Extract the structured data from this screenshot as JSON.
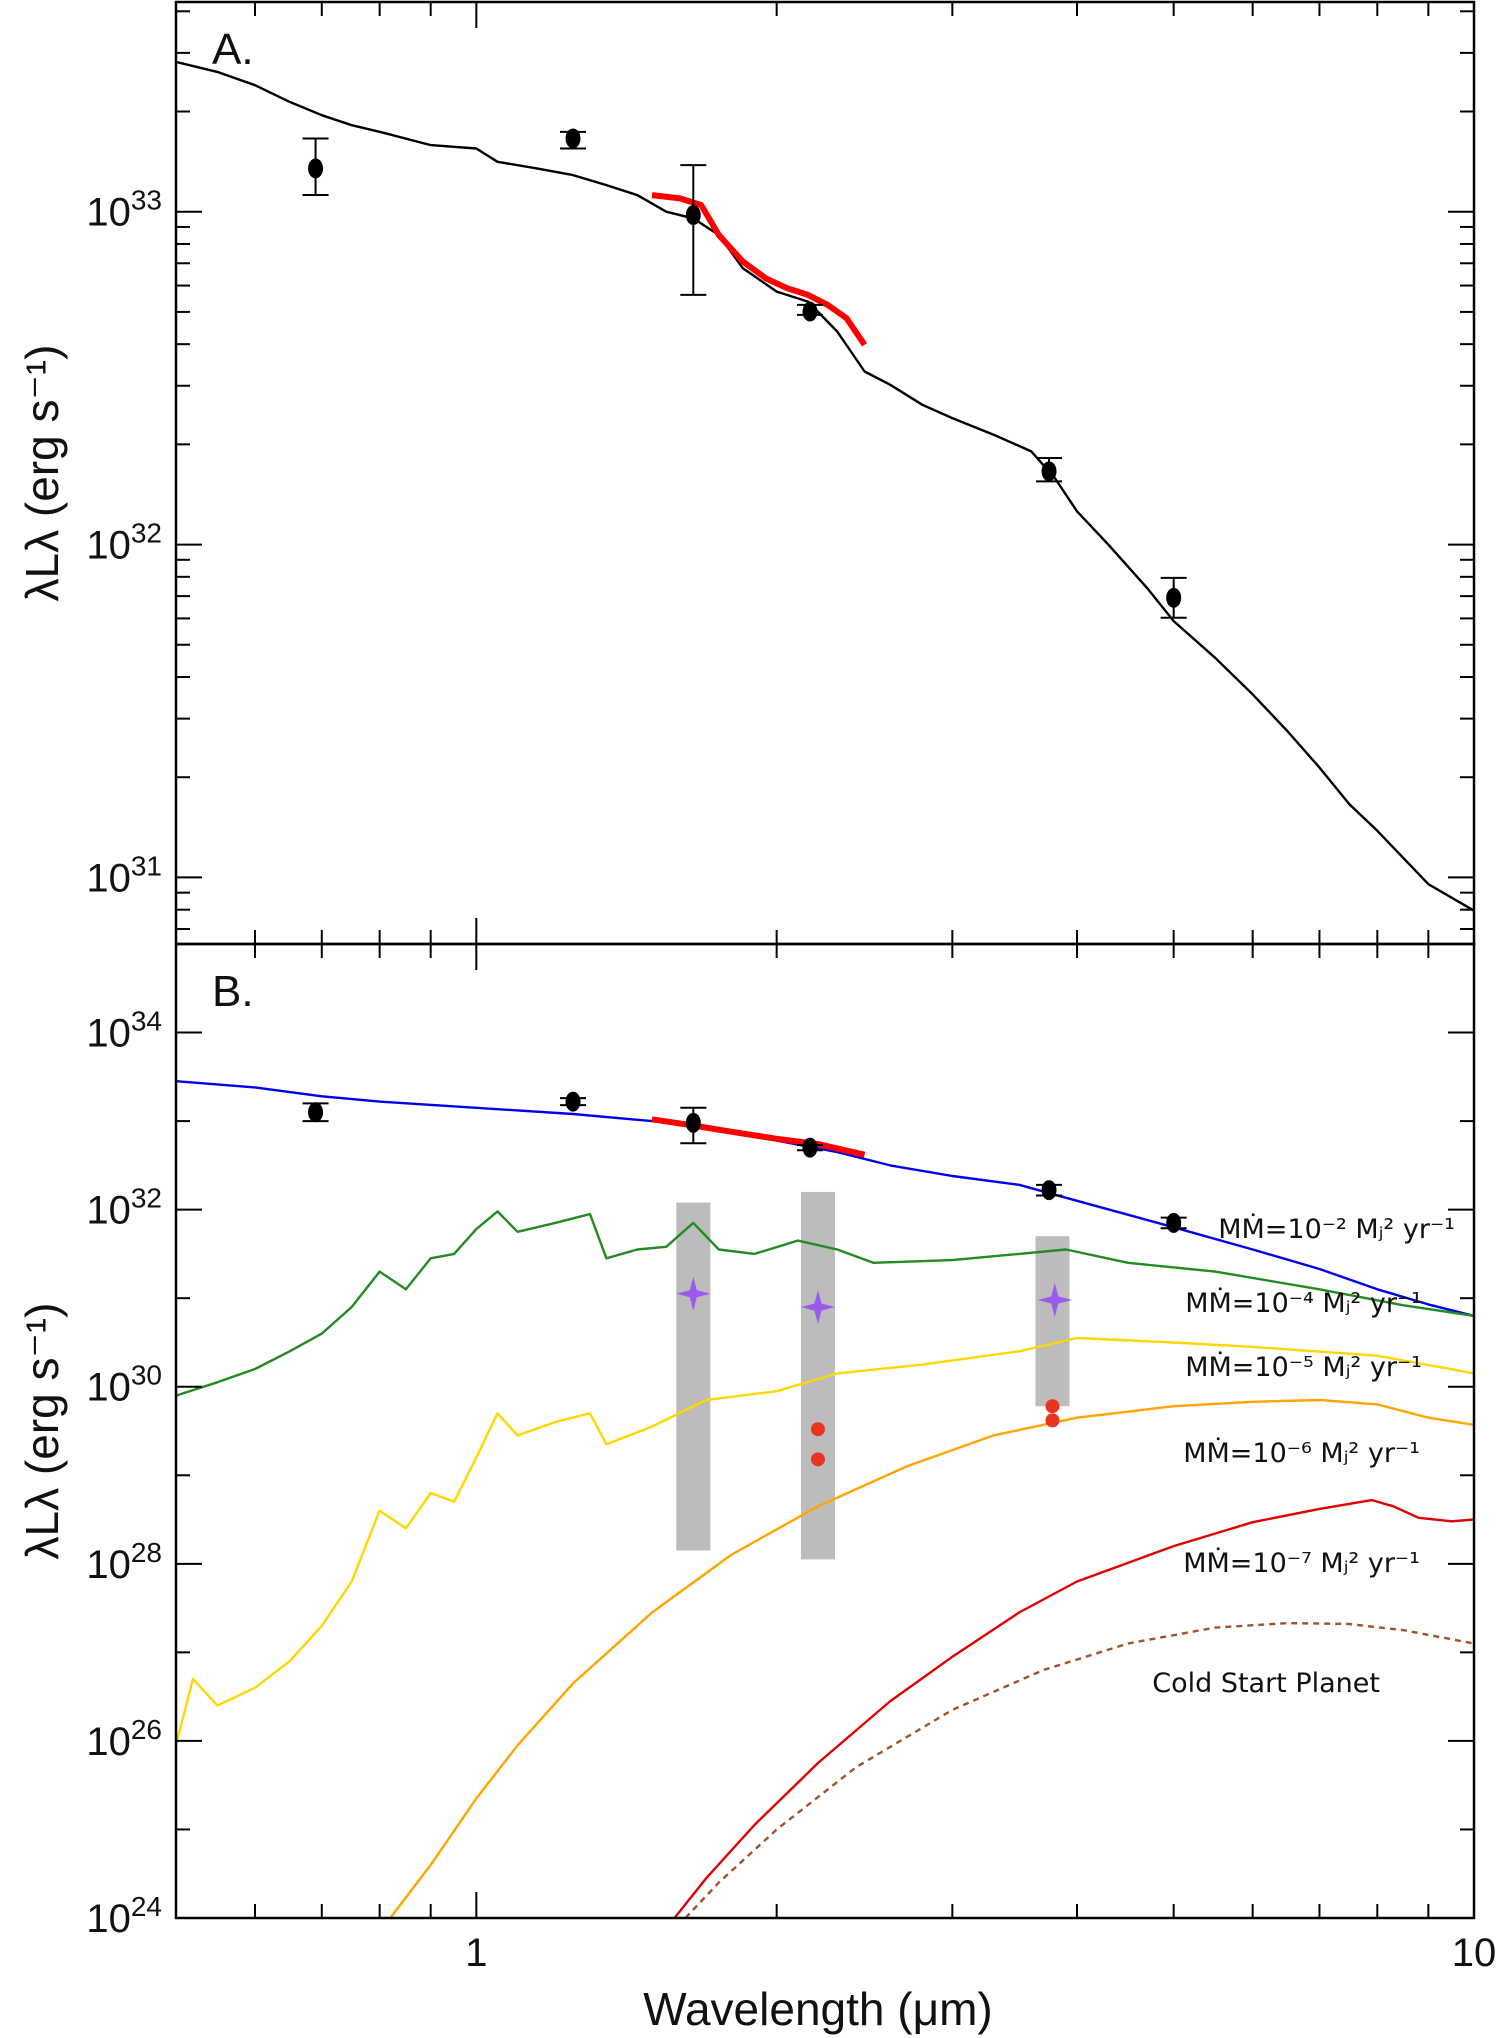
{
  "chart_data": [
    {
      "panel": "A.",
      "type": "line",
      "ylabel": "λLλ (erg s⁻¹)",
      "xscale": "log",
      "yscale": "log",
      "xlim": [
        0.5,
        10
      ],
      "ylim_log10": [
        30.8,
        33.63
      ],
      "y_ticks": [
        {
          "base": "10",
          "exp": "33",
          "v": 33
        },
        {
          "base": "10",
          "exp": "32",
          "v": 32
        },
        {
          "base": "10",
          "exp": "31",
          "v": 31
        }
      ],
      "series": [
        {
          "color": "#000000",
          "style": "model spectrum",
          "points": [
            [
              0.5,
              33.45
            ],
            [
              0.55,
              33.42
            ],
            [
              0.6,
              33.38
            ],
            [
              0.65,
              33.33
            ],
            [
              0.7,
              33.29
            ],
            [
              0.75,
              33.26
            ],
            [
              0.8,
              33.24
            ],
            [
              0.9,
              33.2
            ],
            [
              1.0,
              33.19
            ],
            [
              1.05,
              33.15
            ],
            [
              1.15,
              33.13
            ],
            [
              1.25,
              33.11
            ],
            [
              1.35,
              33.08
            ],
            [
              1.45,
              33.05
            ],
            [
              1.55,
              33.0
            ],
            [
              1.65,
              32.98
            ],
            [
              1.75,
              32.93
            ],
            [
              1.85,
              32.83
            ],
            [
              2.0,
              32.76
            ],
            [
              2.15,
              32.73
            ],
            [
              2.3,
              32.64
            ],
            [
              2.45,
              32.52
            ],
            [
              2.6,
              32.48
            ],
            [
              2.8,
              32.42
            ],
            [
              3.0,
              32.38
            ],
            [
              3.3,
              32.33
            ],
            [
              3.6,
              32.28
            ],
            [
              3.8,
              32.2
            ],
            [
              4.0,
              32.1
            ],
            [
              4.3,
              32.0
            ],
            [
              4.7,
              31.87
            ],
            [
              5.0,
              31.77
            ],
            [
              5.5,
              31.66
            ],
            [
              6.0,
              31.55
            ],
            [
              6.5,
              31.44
            ],
            [
              7.0,
              31.33
            ],
            [
              7.5,
              31.22
            ],
            [
              8.0,
              31.14
            ],
            [
              9.0,
              30.98
            ],
            [
              10.0,
              30.9
            ]
          ]
        },
        {
          "color": "#ff0000",
          "style": "observed spectrum",
          "points": [
            [
              1.5,
              33.05
            ],
            [
              1.6,
              33.04
            ],
            [
              1.68,
              33.02
            ],
            [
              1.75,
              32.93
            ],
            [
              1.85,
              32.85
            ],
            [
              1.95,
              32.8
            ],
            [
              2.05,
              32.77
            ],
            [
              2.15,
              32.75
            ],
            [
              2.25,
              32.72
            ],
            [
              2.35,
              32.68
            ],
            [
              2.45,
              32.6
            ]
          ]
        }
      ],
      "points": [
        {
          "x": 0.69,
          "y": 33.13,
          "yerr_lo": 33.05,
          "yerr_hi": 33.22
        },
        {
          "x": 1.25,
          "y": 33.22,
          "yerr_lo": 33.19,
          "yerr_hi": 33.24
        },
        {
          "x": 1.65,
          "y": 32.99,
          "yerr_lo": 32.75,
          "yerr_hi": 33.14
        },
        {
          "x": 2.16,
          "y": 32.7,
          "yerr_lo": 32.69,
          "yerr_hi": 32.72
        },
        {
          "x": 3.75,
          "y": 32.22,
          "yerr_lo": 32.19,
          "yerr_hi": 32.26
        },
        {
          "x": 5.0,
          "y": 31.84,
          "yerr_lo": 31.78,
          "yerr_hi": 31.9
        }
      ]
    },
    {
      "panel": "B.",
      "type": "line",
      "ylabel": "λLλ (erg s⁻¹)",
      "xlabel": "Wavelength (μm)",
      "xscale": "log",
      "yscale": "log",
      "xlim": [
        0.5,
        10
      ],
      "ylim_log10": [
        24,
        35.0
      ],
      "y_ticks": [
        {
          "base": "10",
          "exp": "34",
          "v": 34
        },
        {
          "base": "10",
          "exp": "32",
          "v": 32
        },
        {
          "base": "10",
          "exp": "30",
          "v": 30
        },
        {
          "base": "10",
          "exp": "28",
          "v": 28
        },
        {
          "base": "10",
          "exp": "26",
          "v": 26
        },
        {
          "base": "10",
          "exp": "24",
          "v": 24
        }
      ],
      "x_ticks": [
        {
          "label": "1",
          "v": 1
        },
        {
          "label": "10",
          "v": 10
        }
      ],
      "series": [
        {
          "color": "#0000ee",
          "label_text": "MṀ=10⁻² Mⱼ² yr⁻¹",
          "points": [
            [
              0.5,
              33.45
            ],
            [
              0.6,
              33.38
            ],
            [
              0.7,
              33.28
            ],
            [
              0.8,
              33.22
            ],
            [
              1.0,
              33.15
            ],
            [
              1.25,
              33.08
            ],
            [
              1.5,
              33.0
            ],
            [
              1.7,
              32.92
            ],
            [
              2.0,
              32.78
            ],
            [
              2.3,
              32.65
            ],
            [
              2.6,
              32.5
            ],
            [
              3.0,
              32.38
            ],
            [
              3.5,
              32.28
            ],
            [
              4.0,
              32.1
            ],
            [
              5.0,
              31.8
            ],
            [
              6.0,
              31.55
            ],
            [
              7.0,
              31.33
            ],
            [
              8.0,
              31.1
            ],
            [
              9.0,
              30.93
            ],
            [
              10.0,
              30.8
            ]
          ]
        },
        {
          "color": "#228b22",
          "label_text": "MṀ=10⁻⁴ Mⱼ² yr⁻¹",
          "points": [
            [
              0.5,
              29.9
            ],
            [
              0.55,
              30.05
            ],
            [
              0.6,
              30.2
            ],
            [
              0.65,
              30.4
            ],
            [
              0.7,
              30.6
            ],
            [
              0.75,
              30.9
            ],
            [
              0.8,
              31.3
            ],
            [
              0.85,
              31.1
            ],
            [
              0.9,
              31.45
            ],
            [
              0.95,
              31.5
            ],
            [
              1.0,
              31.78
            ],
            [
              1.05,
              31.98
            ],
            [
              1.1,
              31.75
            ],
            [
              1.2,
              31.85
            ],
            [
              1.3,
              31.95
            ],
            [
              1.35,
              31.45
            ],
            [
              1.45,
              31.55
            ],
            [
              1.55,
              31.58
            ],
            [
              1.65,
              31.85
            ],
            [
              1.75,
              31.55
            ],
            [
              1.9,
              31.5
            ],
            [
              2.1,
              31.65
            ],
            [
              2.3,
              31.55
            ],
            [
              2.5,
              31.4
            ],
            [
              3.0,
              31.43
            ],
            [
              3.5,
              31.5
            ],
            [
              3.9,
              31.55
            ],
            [
              4.5,
              31.4
            ],
            [
              5.5,
              31.3
            ],
            [
              7.0,
              31.1
            ],
            [
              8.5,
              30.92
            ],
            [
              10.0,
              30.8
            ]
          ]
        },
        {
          "color": "#ffd700",
          "label_text": "MṀ=10⁻⁵ Mⱼ² yr⁻¹",
          "points": [
            [
              0.5,
              25.95
            ],
            [
              0.52,
              26.7
            ],
            [
              0.55,
              26.4
            ],
            [
              0.6,
              26.6
            ],
            [
              0.65,
              26.9
            ],
            [
              0.7,
              27.3
            ],
            [
              0.75,
              27.8
            ],
            [
              0.8,
              28.6
            ],
            [
              0.85,
              28.4
            ],
            [
              0.9,
              28.8
            ],
            [
              0.95,
              28.7
            ],
            [
              1.0,
              29.2
            ],
            [
              1.05,
              29.7
            ],
            [
              1.1,
              29.45
            ],
            [
              1.2,
              29.6
            ],
            [
              1.3,
              29.7
            ],
            [
              1.35,
              29.35
            ],
            [
              1.5,
              29.55
            ],
            [
              1.7,
              29.85
            ],
            [
              2.0,
              29.95
            ],
            [
              2.3,
              30.15
            ],
            [
              2.8,
              30.25
            ],
            [
              3.5,
              30.4
            ],
            [
              4.0,
              30.55
            ],
            [
              5.0,
              30.5
            ],
            [
              6.0,
              30.45
            ],
            [
              8.0,
              30.35
            ],
            [
              10.0,
              30.15
            ]
          ]
        },
        {
          "color": "#ffa500",
          "label_text": "MṀ=10⁻⁶ Mⱼ² yr⁻¹",
          "points": [
            [
              0.82,
              24.0
            ],
            [
              0.9,
              24.6
            ],
            [
              1.0,
              25.35
            ],
            [
              1.1,
              25.95
            ],
            [
              1.25,
              26.65
            ],
            [
              1.5,
              27.45
            ],
            [
              1.8,
              28.1
            ],
            [
              2.2,
              28.65
            ],
            [
              2.7,
              29.1
            ],
            [
              3.3,
              29.45
            ],
            [
              4.0,
              29.65
            ],
            [
              5.0,
              29.78
            ],
            [
              6.0,
              29.83
            ],
            [
              7.0,
              29.85
            ],
            [
              8.0,
              29.8
            ],
            [
              9.0,
              29.65
            ],
            [
              10.0,
              29.57
            ]
          ]
        },
        {
          "color": "#e00000",
          "label_text": "MṀ=10⁻⁷ Mⱼ² yr⁻¹",
          "points": [
            [
              1.58,
              24.0
            ],
            [
              1.7,
              24.45
            ],
            [
              1.9,
              25.05
            ],
            [
              2.2,
              25.75
            ],
            [
              2.6,
              26.45
            ],
            [
              3.0,
              26.95
            ],
            [
              3.5,
              27.45
            ],
            [
              4.0,
              27.8
            ],
            [
              5.0,
              28.2
            ],
            [
              6.0,
              28.47
            ],
            [
              7.0,
              28.62
            ],
            [
              7.9,
              28.72
            ],
            [
              8.3,
              28.65
            ],
            [
              8.8,
              28.52
            ],
            [
              9.5,
              28.48
            ],
            [
              10.0,
              28.5
            ]
          ]
        },
        {
          "color": "#a0522d",
          "dashed": true,
          "label_text": "Cold Start Planet",
          "points": [
            [
              1.62,
              24.0
            ],
            [
              1.75,
              24.4
            ],
            [
              2.0,
              25.0
            ],
            [
              2.4,
              25.7
            ],
            [
              3.0,
              26.35
            ],
            [
              3.7,
              26.8
            ],
            [
              4.5,
              27.1
            ],
            [
              5.5,
              27.28
            ],
            [
              6.5,
              27.33
            ],
            [
              7.5,
              27.32
            ],
            [
              8.5,
              27.25
            ],
            [
              10.0,
              27.1
            ]
          ]
        },
        {
          "color": "#ff0000",
          "style": "observed spectrum",
          "points": [
            [
              1.5,
              33.02
            ],
            [
              1.65,
              32.95
            ],
            [
              1.8,
              32.88
            ],
            [
              2.0,
              32.8
            ],
            [
              2.2,
              32.74
            ],
            [
              2.45,
              32.62
            ]
          ]
        }
      ],
      "points": [
        {
          "x": 0.69,
          "y": 33.1,
          "yerr_lo": 33.0,
          "yerr_hi": 33.2
        },
        {
          "x": 1.25,
          "y": 33.22,
          "yerr_lo": 33.18,
          "yerr_hi": 33.26
        },
        {
          "x": 1.65,
          "y": 32.98,
          "yerr_lo": 32.75,
          "yerr_hi": 33.15
        },
        {
          "x": 2.16,
          "y": 32.7,
          "yerr_lo": 32.67,
          "yerr_hi": 32.73
        },
        {
          "x": 3.75,
          "y": 32.22,
          "yerr_lo": 32.16,
          "yerr_hi": 32.28
        },
        {
          "x": 5.0,
          "y": 31.85,
          "yerr_lo": 31.79,
          "yerr_hi": 31.91
        }
      ],
      "bands": [
        {
          "x": 1.65,
          "ylo": 28.15,
          "yhi": 32.08
        },
        {
          "x": 2.2,
          "ylo": 28.05,
          "yhi": 32.2
        },
        {
          "x": 3.78,
          "ylo": 29.78,
          "yhi": 31.7
        }
      ],
      "stars": [
        {
          "x": 1.65,
          "y": 31.05
        },
        {
          "x": 2.2,
          "y": 30.9
        },
        {
          "x": 3.8,
          "y": 30.98
        }
      ],
      "red_dots": [
        {
          "x": 2.2,
          "y": 29.52
        },
        {
          "x": 2.2,
          "y": 29.18
        },
        {
          "x": 3.78,
          "y": 29.78
        },
        {
          "x": 3.78,
          "y": 29.62
        }
      ],
      "annotations": [
        {
          "text": "MṀ=10⁻² Mⱼ² yr⁻¹",
          "for": 0
        },
        {
          "text": "MṀ=10⁻⁴ Mⱼ² yr⁻¹",
          "for": 1
        },
        {
          "text": "MṀ=10⁻⁵ Mⱼ² yr⁻¹",
          "for": 2
        },
        {
          "text": "MṀ=10⁻⁶ Mⱼ² yr⁻¹",
          "for": 3
        },
        {
          "text": "MṀ=10⁻⁷ Mⱼ² yr⁻¹",
          "for": 4
        },
        {
          "text": "Cold Start Planet",
          "for": 5
        }
      ]
    }
  ],
  "colors": {
    "axis": "#000000",
    "band": "#bcbcbc",
    "star": "#9b59f0",
    "red_dot": "#e8351f"
  }
}
